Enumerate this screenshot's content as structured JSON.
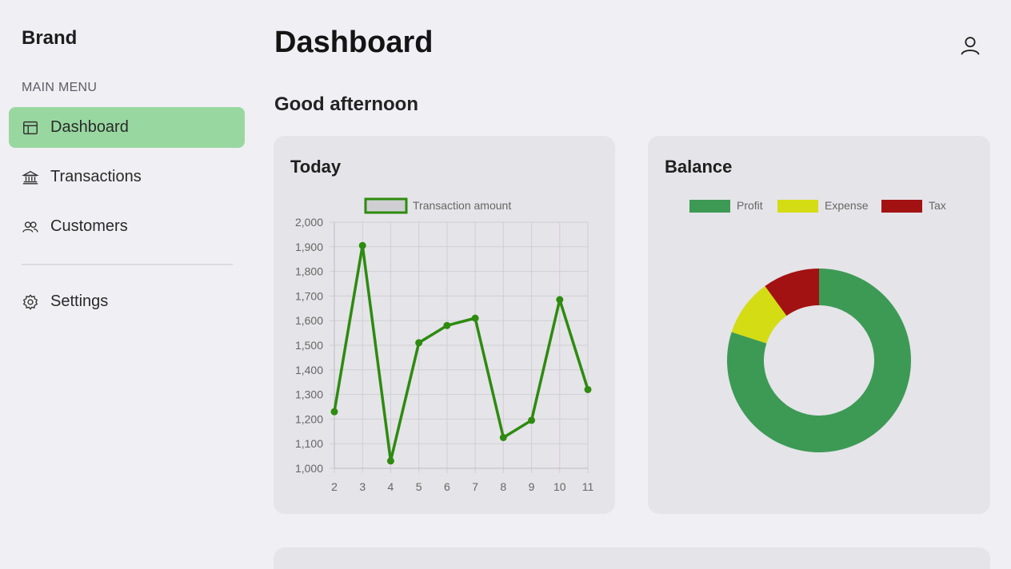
{
  "sidebar": {
    "brand": "Brand",
    "menu_heading": "MAIN MENU",
    "items": [
      {
        "label": "Dashboard",
        "icon": "layout-icon",
        "active": true
      },
      {
        "label": "Transactions",
        "icon": "bank-icon",
        "active": false
      },
      {
        "label": "Customers",
        "icon": "users-icon",
        "active": false
      }
    ],
    "settings": {
      "label": "Settings",
      "icon": "gear-icon"
    }
  },
  "header": {
    "title": "Dashboard",
    "user_icon": "user-icon"
  },
  "greeting": "Good afternoon",
  "colors": {
    "active_nav": "#98d8a0",
    "line": "#2e8b0f",
    "profit": "#3d9a55",
    "expense": "#d4dc14",
    "tax": "#a31212"
  },
  "cards": {
    "today": {
      "title": "Today"
    },
    "balance": {
      "title": "Balance"
    }
  },
  "chart_data": [
    {
      "type": "line",
      "legend_position": "top",
      "grid": true,
      "series": [
        {
          "name": "Transaction amount",
          "x": [
            2,
            3,
            4,
            5,
            6,
            7,
            8,
            9,
            10,
            11
          ],
          "values": [
            1230,
            1905,
            1030,
            1510,
            1580,
            1610,
            1125,
            1195,
            1685,
            1320
          ]
        }
      ],
      "x_ticks": [
        "2",
        "3",
        "4",
        "5",
        "6",
        "7",
        "8",
        "9",
        "10",
        "11"
      ],
      "y_ticks": [
        "1,000",
        "1,100",
        "1,200",
        "1,300",
        "1,400",
        "1,500",
        "1,600",
        "1,700",
        "1,800",
        "1,900",
        "2,000"
      ],
      "ylim": [
        1000,
        2000
      ]
    },
    {
      "type": "pie",
      "donut": true,
      "legend_position": "top",
      "categories": [
        "Profit",
        "Expense",
        "Tax"
      ],
      "values": [
        80,
        10,
        10
      ]
    }
  ]
}
